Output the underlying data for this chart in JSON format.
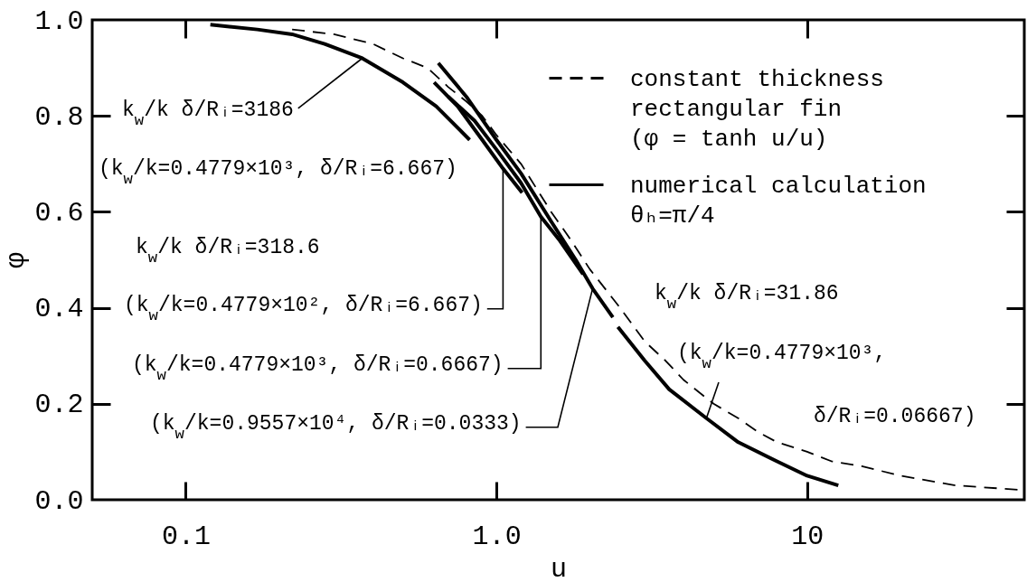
{
  "chart_data": {
    "type": "line",
    "xlabel": "u",
    "ylabel": "φ",
    "log": "x",
    "xlim": [
      0.05,
      50
    ],
    "xticks": [
      0.1,
      {
        "value": 1,
        "label": "1.0"
      },
      10
    ],
    "ylim": [
      0,
      1
    ],
    "yticks": [
      {
        "value": 0,
        "label": "0.0"
      },
      0.2,
      0.4,
      0.6,
      0.8,
      {
        "value": 1,
        "label": "1.0"
      }
    ],
    "legend": "top right",
    "series": [
      {
        "name": "constant thickness rectangular fin (φ = tanh u/u)",
        "color": "#000000",
        "line_style": "dashed",
        "x": [
          0.22,
          0.3,
          0.4,
          0.5,
          0.6,
          0.7,
          0.8,
          0.9,
          1,
          1.2,
          1.5,
          1.7,
          2,
          2.5,
          3,
          3.5,
          4,
          5,
          6,
          7,
          8,
          10,
          12,
          15,
          20,
          30,
          50
        ],
        "values": [
          0.98,
          0.97,
          0.95,
          0.92,
          0.9,
          0.86,
          0.83,
          0.8,
          0.76,
          0.7,
          0.6,
          0.55,
          0.48,
          0.4,
          0.33,
          0.29,
          0.25,
          0.2,
          0.17,
          0.14,
          0.12,
          0.1,
          0.08,
          0.07,
          0.05,
          0.03,
          0.02
        ]
      },
      {
        "name": "numerical calculation θₕ=π/4",
        "color": "#000000",
        "line_style": "solid",
        "x": [
          0.12,
          0.17,
          0.22,
          0.28,
          0.37,
          0.5,
          0.64,
          0.82
        ],
        "values": [
          0.99,
          0.98,
          0.97,
          0.95,
          0.92,
          0.87,
          0.82,
          0.75
        ]
      },
      {
        "color": "#000000",
        "line_style": "solid",
        "x": [
          0.63,
          0.75,
          0.9,
          1.05,
          1.21
        ],
        "values": [
          0.87,
          0.82,
          0.75,
          0.69,
          0.64
        ]
      },
      {
        "color": "#000000",
        "line_style": "solid",
        "x": [
          0.7,
          0.85,
          1,
          1.2,
          1.39,
          1.6,
          1.9
        ],
        "values": [
          0.84,
          0.79,
          0.73,
          0.66,
          0.59,
          0.54,
          0.47
        ]
      },
      {
        "color": "#000000",
        "line_style": "solid",
        "x": [
          0.65,
          0.8,
          1,
          1.2,
          1.5,
          1.8,
          2.04,
          2.37
        ],
        "values": [
          0.91,
          0.84,
          0.75,
          0.68,
          0.58,
          0.5,
          0.44,
          0.38
        ]
      },
      {
        "color": "#000000",
        "line_style": "solid",
        "x": [
          2.46,
          3,
          3.6,
          4.74,
          6,
          8,
          10,
          12.6
        ],
        "values": [
          0.36,
          0.29,
          0.23,
          0.17,
          0.12,
          0.08,
          0.05,
          0.03
        ]
      }
    ],
    "annotations": [
      {
        "text": "k$_{w}$/k δ/Rᵢ=3186",
        "x": 0.37,
        "y": 0.92
      },
      "(k$_{w}$/k=0.4779×10³, δ/Rᵢ=6.667)",
      "k$_{w}$/k δ/Rᵢ=318.6",
      {
        "text": "(k$_{w}$/k=0.4779×10², δ/Rᵢ=6.667)",
        "x": 1.05,
        "y": 0.69
      },
      {
        "text": "(k$_{w}$/k=0.4779×10³, δ/Rᵢ=0.6667)",
        "x": 1.39,
        "y": 0.59
      },
      {
        "text": "(k$_{w}$/k=0.9557×10⁴, δ/Rᵢ=0.0333)",
        "x": 2.04,
        "y": 0.44
      },
      "k$_{w}$/k δ/Rᵢ=31.86",
      {
        "text": "(k$_{w}$/k=0.4779×10³,",
        "x": 4.74,
        "y": 0.17
      },
      "δ/Rᵢ=0.06667)"
    ]
  }
}
